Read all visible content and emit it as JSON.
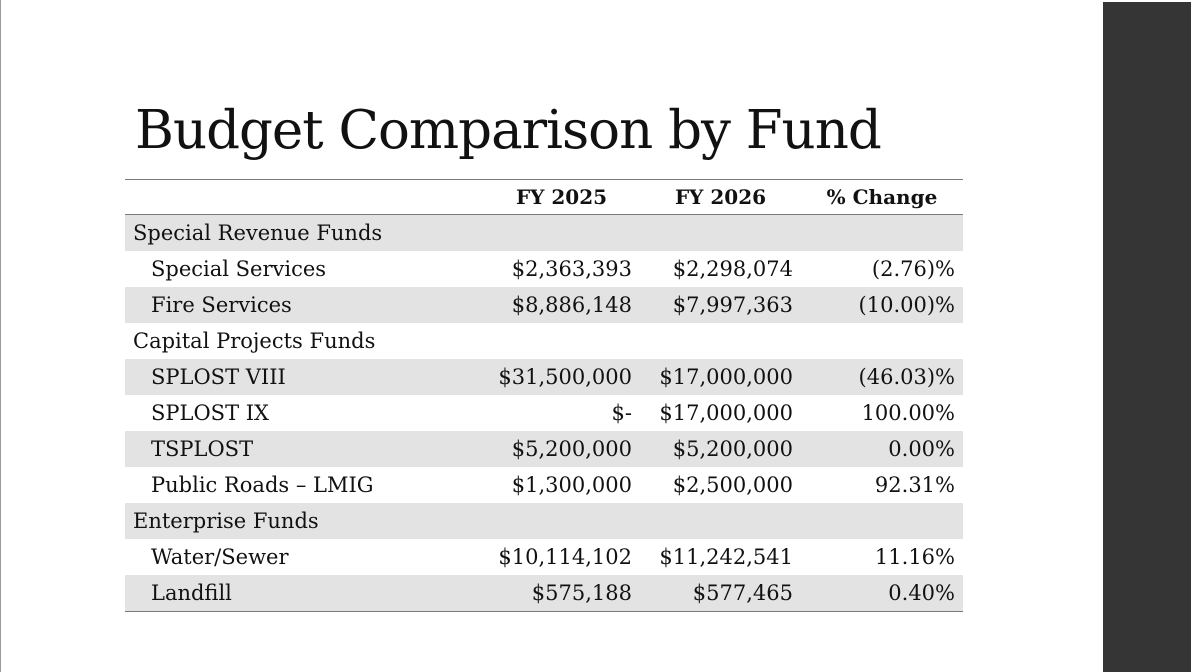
{
  "slide": {
    "title": "Budget Comparison by Fund"
  },
  "table": {
    "headers": {
      "label": "",
      "fy2025": "FY 2025",
      "fy2026": "FY 2026",
      "change": "% Change"
    },
    "rows": [
      {
        "type": "section",
        "label": "Special Revenue Funds",
        "fy2025": "",
        "fy2026": "",
        "change": ""
      },
      {
        "type": "item",
        "label": "Special Services",
        "fy2025": "$2,363,393",
        "fy2026": "$2,298,074",
        "change": "(2.76)%"
      },
      {
        "type": "item",
        "label": "Fire Services",
        "fy2025": "$8,886,148",
        "fy2026": "$7,997,363",
        "change": "(10.00)%"
      },
      {
        "type": "section",
        "label": "Capital Projects Funds",
        "fy2025": "",
        "fy2026": "",
        "change": ""
      },
      {
        "type": "item",
        "label": "SPLOST VIII",
        "fy2025": "$31,500,000",
        "fy2026": "$17,000,000",
        "change": "(46.03)%"
      },
      {
        "type": "item",
        "label": "SPLOST IX",
        "fy2025": "$-",
        "fy2026": "$17,000,000",
        "change": "100.00%"
      },
      {
        "type": "item",
        "label": "TSPLOST",
        "fy2025": "$5,200,000",
        "fy2026": "$5,200,000",
        "change": "0.00%"
      },
      {
        "type": "item",
        "label": "Public Roads – LMIG",
        "fy2025": "$1,300,000",
        "fy2026": "$2,500,000",
        "change": "92.31%"
      },
      {
        "type": "section",
        "label": "Enterprise Funds",
        "fy2025": "",
        "fy2026": "",
        "change": ""
      },
      {
        "type": "item",
        "label": "Water/Sewer",
        "fy2025": "$10,114,102",
        "fy2026": "$11,242,541",
        "change": "11.16%"
      },
      {
        "type": "item",
        "label": "Landfill",
        "fy2025": "$575,188",
        "fy2026": "$577,465",
        "change": "0.40%"
      }
    ]
  },
  "colors": {
    "row_shade": "#e3e3e4",
    "side_band": "#353535",
    "rule": "#7a7a7a"
  }
}
